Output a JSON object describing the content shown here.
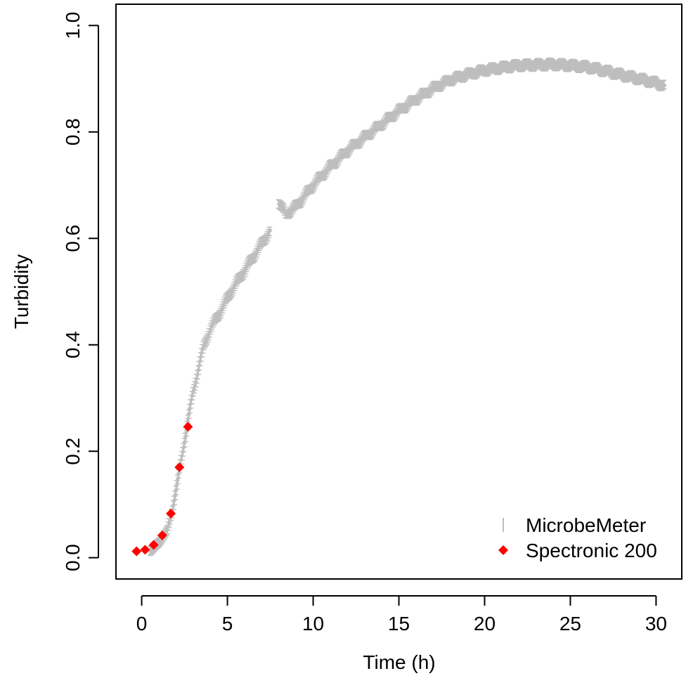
{
  "chart_data": {
    "type": "scatter",
    "title": "",
    "xlabel": "Time (h)",
    "ylabel": "Turbidity",
    "xlim": [
      -1.5,
      31.5
    ],
    "ylim": [
      -0.04,
      1.04
    ],
    "x_ticks": [
      "0",
      "5",
      "10",
      "15",
      "20",
      "25",
      "30"
    ],
    "y_ticks": [
      "0.0",
      "0.2",
      "0.4",
      "0.6",
      "0.8",
      "1.0"
    ],
    "grid": false,
    "legend": {
      "position": "bottom-right",
      "entries": [
        {
          "label": "MicrobeMeter",
          "color": "#bebebe",
          "marker": "error-bar"
        },
        {
          "label": "Spectronic 200",
          "color": "#ff0000",
          "marker": "diamond"
        }
      ]
    },
    "series": [
      {
        "name": "MicrobeMeter",
        "color": "#bebebe",
        "style": "dense points with error bars",
        "error": 0.008,
        "segments": [
          {
            "x": [
              0.5,
              1.0,
              1.5,
              1.8,
              2.1,
              2.4,
              2.7,
              3.0,
              3.3,
              3.6,
              4.0,
              4.4,
              4.8,
              5.2,
              5.6,
              6.0,
              6.5,
              7.0,
              7.5
            ],
            "y": [
              0.013,
              0.028,
              0.052,
              0.09,
              0.145,
              0.2,
              0.26,
              0.31,
              0.355,
              0.395,
              0.43,
              0.452,
              0.475,
              0.5,
              0.52,
              0.54,
              0.565,
              0.59,
              0.615
            ]
          },
          {
            "x": [
              8.0,
              8.4,
              9.0,
              9.5,
              10.0,
              10.5,
              11.0,
              12.0,
              13.0,
              14.0,
              15.0,
              16.0,
              17.0,
              18.0,
              19.0,
              20.0,
              21.0,
              22.0,
              23.0,
              24.0,
              25.0,
              26.0,
              27.0,
              28.0,
              29.0,
              30.0,
              30.5
            ],
            "y": [
              0.668,
              0.645,
              0.66,
              0.68,
              0.7,
              0.718,
              0.735,
              0.765,
              0.79,
              0.815,
              0.84,
              0.862,
              0.882,
              0.898,
              0.908,
              0.916,
              0.921,
              0.925,
              0.926,
              0.927,
              0.925,
              0.922,
              0.915,
              0.907,
              0.9,
              0.892,
              0.887
            ]
          }
        ]
      },
      {
        "name": "Spectronic 200",
        "color": "#ff0000",
        "marker": "diamond",
        "x": [
          -0.3,
          0.2,
          0.7,
          1.2,
          1.7,
          2.2,
          2.7
        ],
        "y": [
          0.012,
          0.015,
          0.024,
          0.042,
          0.083,
          0.17,
          0.246
        ]
      }
    ]
  }
}
